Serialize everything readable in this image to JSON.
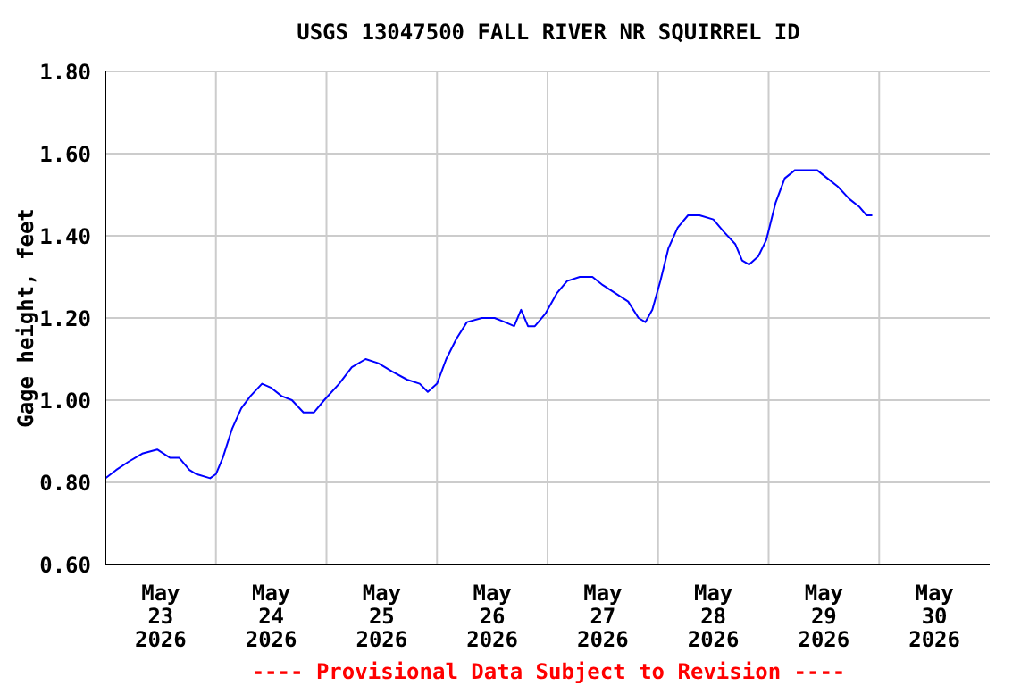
{
  "chart_data": {
    "type": "line",
    "title": "USGS 13047500 FALL RIVER NR SQUIRREL ID",
    "ylabel": "Gage height, feet",
    "annotations": [
      "---- Provisional Data Subject to Revision ----"
    ],
    "xlim": [
      "2026-05-23T00:00",
      "2026-05-31T00:00"
    ],
    "xticks": [
      {
        "value": "2026-05-23T12:00",
        "label": "May 23 2026"
      },
      {
        "value": "2026-05-24T12:00",
        "label": "May 24 2026"
      },
      {
        "value": "2026-05-25T12:00",
        "label": "May 25 2026"
      },
      {
        "value": "2026-05-26T12:00",
        "label": "May 26 2026"
      },
      {
        "value": "2026-05-27T12:00",
        "label": "May 27 2026"
      },
      {
        "value": "2026-05-28T12:00",
        "label": "May 28 2026"
      },
      {
        "value": "2026-05-29T12:00",
        "label": "May 29 2026"
      },
      {
        "value": "2026-05-30T12:00",
        "label": "May 30 2026"
      },
      {
        "value": "2026-05-24T00:00",
        "label": null
      },
      {
        "value": "2026-05-25T00:00",
        "label": null
      },
      {
        "value": "2026-05-26T00:00",
        "label": null
      },
      {
        "value": "2026-05-27T00:00",
        "label": null
      },
      {
        "value": "2026-05-28T00:00",
        "label": null
      },
      {
        "value": "2026-05-29T00:00",
        "label": null
      },
      {
        "value": "2026-05-30T00:00",
        "label": null
      }
    ],
    "ylim": [
      0.6,
      1.8
    ],
    "yticks": [
      {
        "value": 0.6,
        "label": "0.60"
      },
      {
        "value": 0.8,
        "label": "0.80"
      },
      {
        "value": 1.0,
        "label": "1.00"
      },
      {
        "value": 1.2,
        "label": "1.20"
      },
      {
        "value": 1.4,
        "label": "1.40"
      },
      {
        "value": 1.6,
        "label": "1.60"
      },
      {
        "value": 1.8,
        "label": "1.80"
      }
    ],
    "grid": true,
    "legend": false,
    "marker": "none",
    "line_style": "solid",
    "x": [
      "2026-05-23T00:00",
      "2026-05-23T02:20",
      "2026-05-23T05:00",
      "2026-05-23T08:00",
      "2026-05-23T11:15",
      "2026-05-23T14:00",
      "2026-05-23T16:00",
      "2026-05-23T18:15",
      "2026-05-23T19:45",
      "2026-05-23T22:45",
      "2026-05-24T00:00",
      "2026-05-24T01:30",
      "2026-05-24T03:30",
      "2026-05-24T05:30",
      "2026-05-24T07:30",
      "2026-05-24T10:00",
      "2026-05-24T12:00",
      "2026-05-24T14:15",
      "2026-05-24T16:30",
      "2026-05-24T19:00",
      "2026-05-24T21:15",
      "2026-05-24T23:30",
      "2026-05-25T02:45",
      "2026-05-25T05:30",
      "2026-05-25T08:30",
      "2026-05-25T11:15",
      "2026-05-25T14:15",
      "2026-05-25T17:30",
      "2026-05-25T20:15",
      "2026-05-25T22:00",
      "2026-05-26T00:00",
      "2026-05-26T02:00",
      "2026-05-26T04:15",
      "2026-05-26T06:30",
      "2026-05-26T09:45",
      "2026-05-26T12:30",
      "2026-05-26T14:45",
      "2026-05-26T16:45",
      "2026-05-26T18:15",
      "2026-05-26T19:45",
      "2026-05-26T21:15",
      "2026-05-26T23:30",
      "2026-05-27T02:00",
      "2026-05-27T04:15",
      "2026-05-27T07:00",
      "2026-05-27T09:45",
      "2026-05-27T12:00",
      "2026-05-27T14:45",
      "2026-05-27T17:30",
      "2026-05-27T19:45",
      "2026-05-27T21:15",
      "2026-05-27T22:45",
      "2026-05-28T00:30",
      "2026-05-28T02:15",
      "2026-05-28T04:15",
      "2026-05-28T06:30",
      "2026-05-28T09:00",
      "2026-05-28T12:00",
      "2026-05-28T14:15",
      "2026-05-28T16:45",
      "2026-05-28T18:15",
      "2026-05-28T19:45",
      "2026-05-28T21:45",
      "2026-05-28T23:30",
      "2026-05-29T01:30",
      "2026-05-29T03:30",
      "2026-05-29T05:45",
      "2026-05-29T08:00",
      "2026-05-29T10:30",
      "2026-05-29T12:45",
      "2026-05-29T15:00",
      "2026-05-29T17:30",
      "2026-05-29T19:45",
      "2026-05-29T21:15",
      "2026-05-29T22:30"
    ],
    "series": [
      {
        "color": "#0000ff",
        "values": [
          0.81,
          0.83,
          0.85,
          0.87,
          0.88,
          0.86,
          0.86,
          0.83,
          0.82,
          0.81,
          0.82,
          0.86,
          0.93,
          0.98,
          1.01,
          1.04,
          1.03,
          1.01,
          1.0,
          0.97,
          0.97,
          1.0,
          1.04,
          1.08,
          1.1,
          1.09,
          1.07,
          1.05,
          1.04,
          1.02,
          1.04,
          1.1,
          1.15,
          1.19,
          1.2,
          1.2,
          1.19,
          1.18,
          1.22,
          1.18,
          1.18,
          1.21,
          1.26,
          1.29,
          1.3,
          1.3,
          1.28,
          1.26,
          1.24,
          1.2,
          1.19,
          1.22,
          1.29,
          1.37,
          1.42,
          1.45,
          1.45,
          1.44,
          1.41,
          1.38,
          1.34,
          1.33,
          1.35,
          1.39,
          1.48,
          1.54,
          1.56,
          1.56,
          1.56,
          1.54,
          1.52,
          1.49,
          1.47,
          1.45,
          1.45
        ]
      }
    ]
  }
}
